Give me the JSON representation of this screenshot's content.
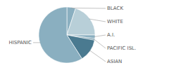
{
  "chart_data": {
    "type": "pie",
    "categories": [
      "BLACK",
      "WHITE",
      "A.I.",
      "PACIFIC ISL.",
      "ASIAN",
      "HISPANIC"
    ],
    "values": [
      5,
      20,
      2,
      1,
      13,
      59
    ],
    "colors": [
      "#8aafc0",
      "#b8cfd8",
      "#8aafc0",
      "#7aa0b0",
      "#4a7a90",
      "#8aafc0"
    ]
  }
}
